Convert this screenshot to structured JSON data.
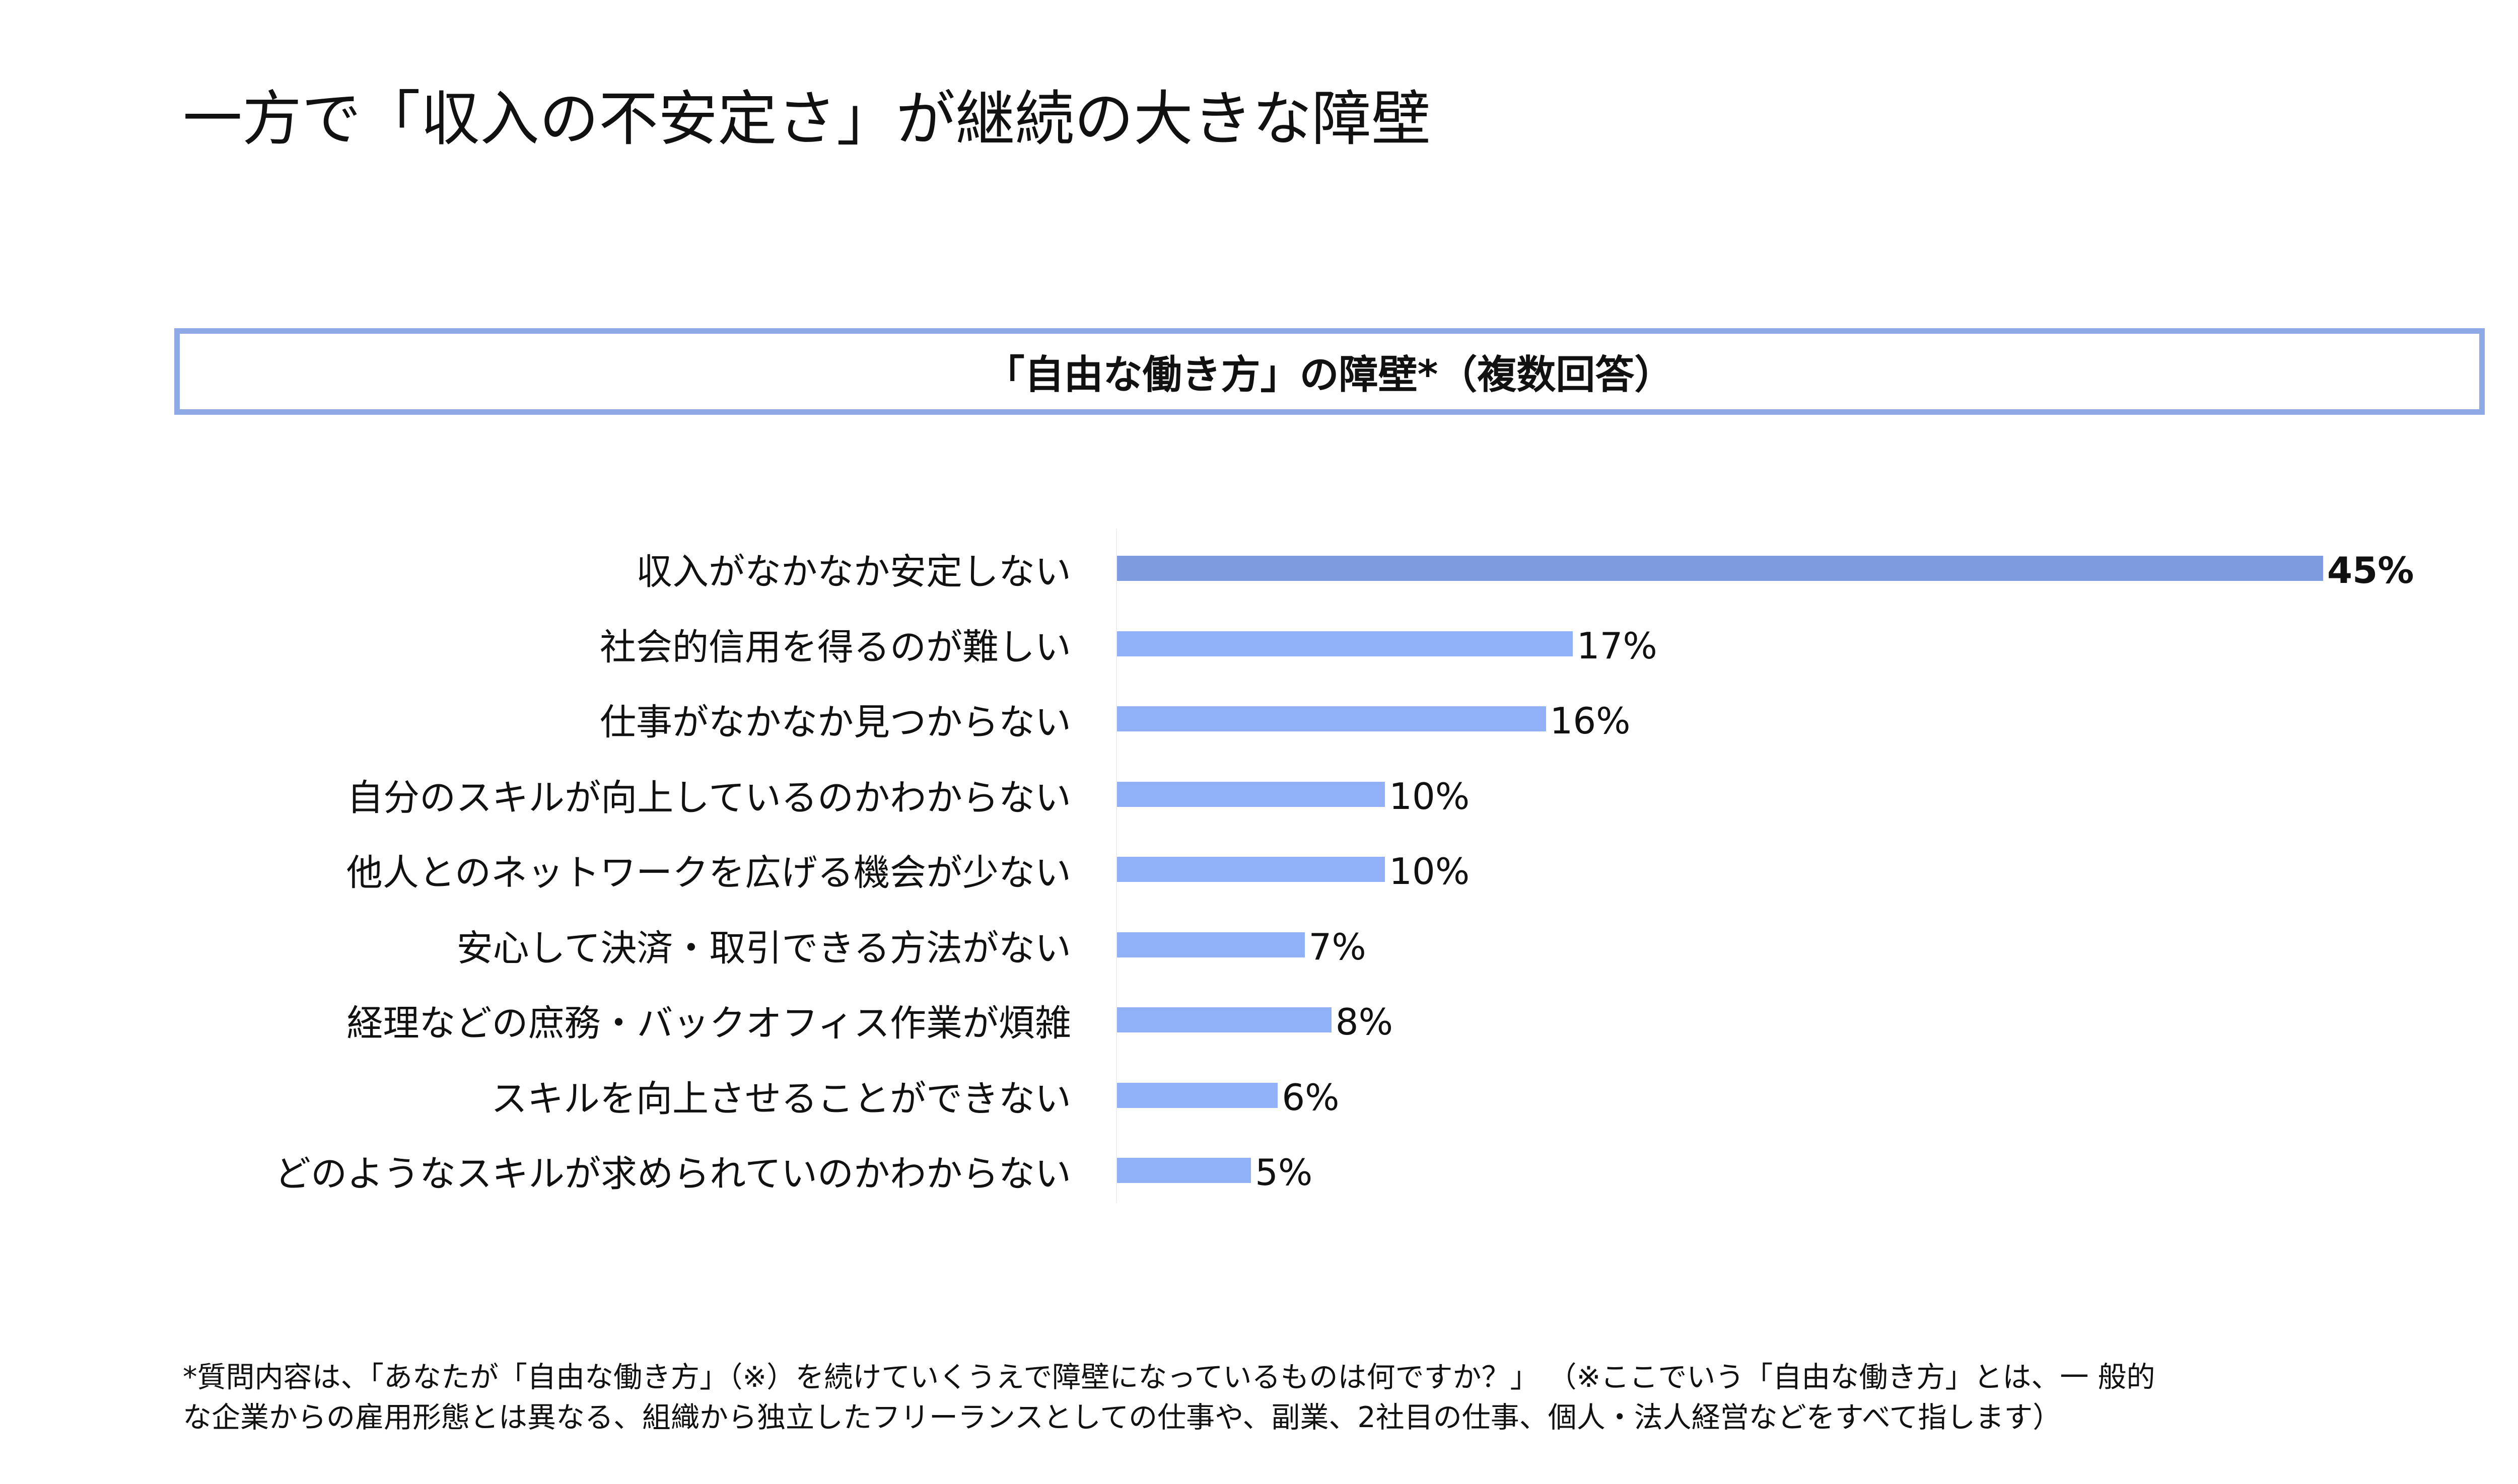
{
  "page": {
    "title": "一方で「収入の不安定さ」が継続の大きな障壁"
  },
  "chart_data": {
    "type": "bar",
    "orientation": "horizontal",
    "title": "「自由な働き方」の障壁*（複数回答）",
    "categories": [
      "収入がなかなか安定しない",
      "社会的信用を得るのが難しい",
      "仕事がなかなか見つからない",
      "自分のスキルが向上しているのかわからない",
      "他人とのネットワークを広げる機会が少ない",
      "安心して決済・取引できる方法がない",
      "経理などの庶務・バックオフィス作業が煩雑",
      "スキルを向上させることができない",
      "どのようなスキルが求められていのかわからない"
    ],
    "values": [
      45,
      17,
      16,
      10,
      10,
      7,
      8,
      6,
      5
    ],
    "value_labels": [
      "45%",
      "17%",
      "16%",
      "10%",
      "10%",
      "7%",
      "8%",
      "6%",
      "5%"
    ],
    "unit": "%",
    "highlight_index": 0,
    "colors": {
      "highlight": "#7f9be0",
      "default": "#90b0f8",
      "title_border": "#8ea9e6"
    },
    "grid": false,
    "legend": "none"
  },
  "footnote": {
    "line1": "*質問内容は、「あなたが「自由な働き方」（※）を続けていくうえで障壁になっているものは何ですか？」 （※ここでいう「自由な働き方」とは、一 般的",
    "line2": "な企業からの雇用形態とは異なる、組織から独立したフリーランスとしての仕事や、副業、2社目の仕事、個人・法人経営などをすべて指します）"
  }
}
